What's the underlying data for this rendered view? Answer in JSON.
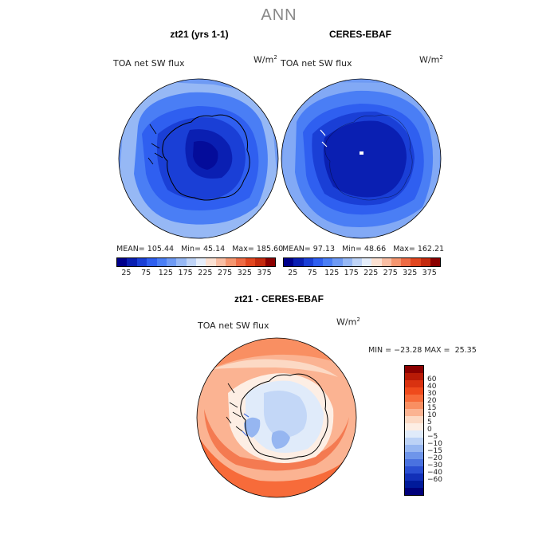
{
  "title": "ANN",
  "panels": [
    {
      "title": "zt21 (yrs 1-1)",
      "variable": "TOA net SW flux",
      "units_base": "W/m",
      "units_sup": "2",
      "stats": {
        "mean_label": "MEAN=",
        "mean": "105.44",
        "min_label": "Min=",
        "min": "45.14",
        "max_label": "Max=",
        "max": "185.60"
      },
      "colorbar": {
        "colors": [
          "#00008b",
          "#0a1fb2",
          "#1a3fd6",
          "#2f5ff0",
          "#4a7ef5",
          "#6e9af4",
          "#96b8f5",
          "#bfd4f7",
          "#e5eefb",
          "#fbe1d2",
          "#f9bea3",
          "#f5966f",
          "#ee6b44",
          "#e1461f",
          "#c42a0e",
          "#8b0000"
        ],
        "labels": [
          "25",
          "75",
          "125",
          "175",
          "225",
          "275",
          "325",
          "375"
        ]
      }
    },
    {
      "title": "CERES-EBAF",
      "variable": "TOA net SW flux",
      "units_base": "W/m",
      "units_sup": "2",
      "stats": {
        "mean_label": "MEAN=",
        "mean": "97.13",
        "min_label": "Min=",
        "min": "48.66",
        "max_label": "Max=",
        "max": "162.21"
      },
      "colorbar": {
        "colors": [
          "#00008b",
          "#0a1fb2",
          "#1a3fd6",
          "#2f5ff0",
          "#4a7ef5",
          "#6e9af4",
          "#96b8f5",
          "#bfd4f7",
          "#e5eefb",
          "#fbe1d2",
          "#f9bea3",
          "#f5966f",
          "#ee6b44",
          "#e1461f",
          "#c42a0e",
          "#8b0000"
        ],
        "labels": [
          "25",
          "75",
          "125",
          "175",
          "225",
          "275",
          "325",
          "375"
        ]
      }
    }
  ],
  "diff": {
    "title": "zt21 - CERES-EBAF",
    "variable": "TOA net SW flux",
    "units_base": "W/m",
    "units_sup": "2",
    "stats": {
      "min_label": "MIN =",
      "min": "−23.28",
      "max_label": "MAX =",
      "max": "25.35"
    },
    "colorbar": {
      "colors": [
        "#8b0000",
        "#b81a06",
        "#d93210",
        "#ef4a1c",
        "#f76b3a",
        "#f98f62",
        "#fbb392",
        "#fcd9c4",
        "#fdeee4",
        "#e0ebfa",
        "#bcd2f6",
        "#96b6f1",
        "#6e95ea",
        "#4a72e0",
        "#2a4fd2",
        "#1230b8",
        "#001a9a",
        "#00007a"
      ],
      "labels": [
        "60",
        "40",
        "30",
        "20",
        "15",
        "10",
        "5",
        "0",
        "−5",
        "−10",
        "−15",
        "−20",
        "−30",
        "−40",
        "−60"
      ]
    }
  }
}
